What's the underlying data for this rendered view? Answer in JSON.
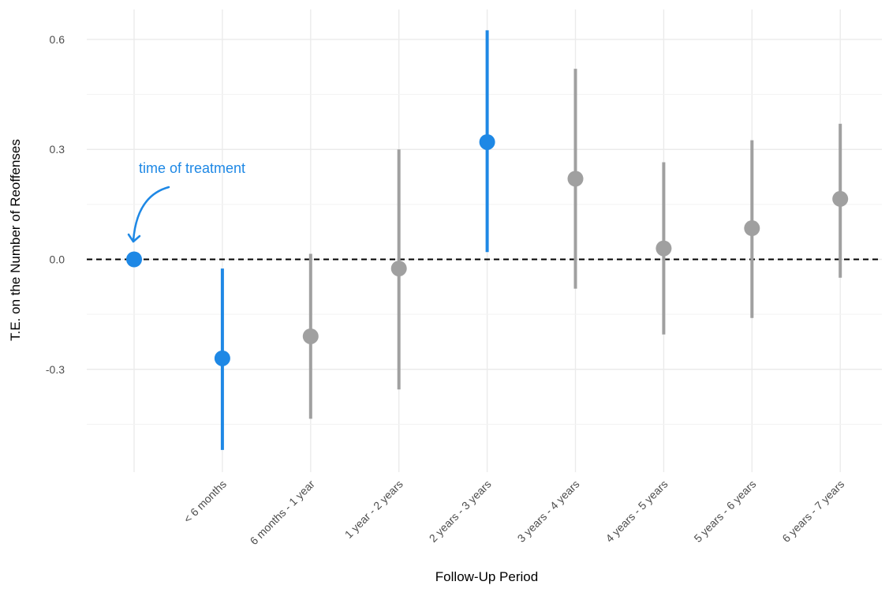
{
  "chart_data": {
    "type": "scatter",
    "subtype": "point-range",
    "xlabel": "Follow-Up Period",
    "ylabel": "T.E. on the Number of Reoffenses",
    "categories": [
      "",
      "< 6 months",
      "6 months - 1 year",
      "1 year - 2 years",
      "2 years - 3 years",
      "3 years - 4 years",
      "4 years - 5 years",
      "5 years - 6 years",
      "6 years - 7 years"
    ],
    "points": [
      {
        "category": "",
        "estimate": 0.0,
        "lower": null,
        "upper": null,
        "significant": true
      },
      {
        "category": "< 6 months",
        "estimate": -0.27,
        "lower": -0.52,
        "upper": -0.025,
        "significant": true
      },
      {
        "category": "6 months - 1 year",
        "estimate": -0.21,
        "lower": -0.435,
        "upper": 0.015,
        "significant": false
      },
      {
        "category": "1 year - 2 years",
        "estimate": -0.025,
        "lower": -0.355,
        "upper": 0.3,
        "significant": false
      },
      {
        "category": "2 years - 3 years",
        "estimate": 0.32,
        "lower": 0.02,
        "upper": 0.625,
        "significant": true
      },
      {
        "category": "3 years - 4 years",
        "estimate": 0.22,
        "lower": -0.08,
        "upper": 0.52,
        "significant": false
      },
      {
        "category": "4 years - 5 years",
        "estimate": 0.03,
        "lower": -0.205,
        "upper": 0.265,
        "significant": false
      },
      {
        "category": "5 years - 6 years",
        "estimate": 0.085,
        "lower": -0.16,
        "upper": 0.325,
        "significant": false
      },
      {
        "category": "6 years - 7 years",
        "estimate": 0.165,
        "lower": -0.05,
        "upper": 0.37,
        "significant": false
      }
    ],
    "y_ticks": [
      -0.3,
      0.0,
      0.3,
      0.6
    ],
    "y_tick_labels": [
      "-0.3",
      "0.0",
      "0.3",
      "0.6"
    ],
    "ylim": [
      -0.52,
      0.67
    ],
    "reference_line": {
      "y": 0.0,
      "style": "dashed",
      "color": "#000000"
    },
    "annotation": {
      "text": "time of treatment",
      "points_to_category": "",
      "color": "#1e88e5"
    },
    "colors": {
      "significant": "#1e88e5",
      "not_significant": "#a0a0a0"
    },
    "grid": true,
    "legend": "none"
  }
}
